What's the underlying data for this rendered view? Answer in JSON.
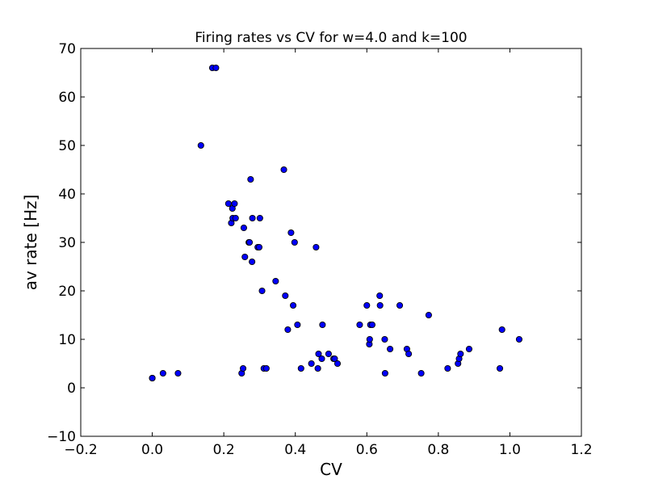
{
  "chart_data": {
    "type": "scatter",
    "title": "Firing rates vs CV for w=4.0 and k=100",
    "xlabel": "CV",
    "ylabel": "av rate [Hz]",
    "xlim": [
      -0.2,
      1.2
    ],
    "ylim": [
      -10,
      70
    ],
    "xticks": [
      -0.2,
      0.0,
      0.2,
      0.4,
      0.6,
      0.8,
      1.0,
      1.2
    ],
    "yticks": [
      -10,
      0,
      10,
      20,
      30,
      40,
      50,
      60,
      70
    ],
    "xtick_labels": [
      "−0.2",
      "0.0",
      "0.2",
      "0.4",
      "0.6",
      "0.8",
      "1.0",
      "1.2"
    ],
    "ytick_labels": [
      "−10",
      "0",
      "10",
      "20",
      "30",
      "40",
      "50",
      "60",
      "70"
    ],
    "grid": false,
    "legend": "none",
    "marker_color": "#0000ff",
    "marker_edge_color": "#000000",
    "points": [
      [
        0.0,
        2
      ],
      [
        0.0,
        2
      ],
      [
        0.03,
        3
      ],
      [
        0.072,
        3
      ],
      [
        0.136,
        50
      ],
      [
        0.168,
        66
      ],
      [
        0.178,
        66
      ],
      [
        0.213,
        38
      ],
      [
        0.221,
        34
      ],
      [
        0.224,
        37
      ],
      [
        0.225,
        35
      ],
      [
        0.23,
        38
      ],
      [
        0.233,
        35
      ],
      [
        0.25,
        3
      ],
      [
        0.254,
        4
      ],
      [
        0.256,
        33
      ],
      [
        0.259,
        27
      ],
      [
        0.27,
        30
      ],
      [
        0.272,
        30
      ],
      [
        0.275,
        43
      ],
      [
        0.279,
        26
      ],
      [
        0.28,
        35
      ],
      [
        0.295,
        29
      ],
      [
        0.299,
        29
      ],
      [
        0.301,
        35
      ],
      [
        0.307,
        20
      ],
      [
        0.312,
        4
      ],
      [
        0.319,
        4
      ],
      [
        0.345,
        22
      ],
      [
        0.368,
        45
      ],
      [
        0.372,
        19
      ],
      [
        0.379,
        12
      ],
      [
        0.388,
        32
      ],
      [
        0.394,
        17
      ],
      [
        0.398,
        30
      ],
      [
        0.406,
        13
      ],
      [
        0.416,
        4
      ],
      [
        0.445,
        5
      ],
      [
        0.458,
        29
      ],
      [
        0.463,
        4
      ],
      [
        0.465,
        7
      ],
      [
        0.474,
        6
      ],
      [
        0.476,
        13
      ],
      [
        0.493,
        7
      ],
      [
        0.507,
        6
      ],
      [
        0.51,
        6
      ],
      [
        0.518,
        5
      ],
      [
        0.58,
        13
      ],
      [
        0.6,
        17
      ],
      [
        0.607,
        9
      ],
      [
        0.608,
        10
      ],
      [
        0.61,
        13
      ],
      [
        0.615,
        13
      ],
      [
        0.636,
        19
      ],
      [
        0.637,
        17
      ],
      [
        0.65,
        10
      ],
      [
        0.651,
        3
      ],
      [
        0.665,
        8
      ],
      [
        0.692,
        17
      ],
      [
        0.712,
        8
      ],
      [
        0.717,
        7
      ],
      [
        0.752,
        3
      ],
      [
        0.773,
        15
      ],
      [
        0.826,
        4
      ],
      [
        0.855,
        5
      ],
      [
        0.858,
        6
      ],
      [
        0.862,
        7
      ],
      [
        0.886,
        8
      ],
      [
        0.972,
        4
      ],
      [
        0.978,
        12
      ],
      [
        1.026,
        10
      ]
    ]
  }
}
